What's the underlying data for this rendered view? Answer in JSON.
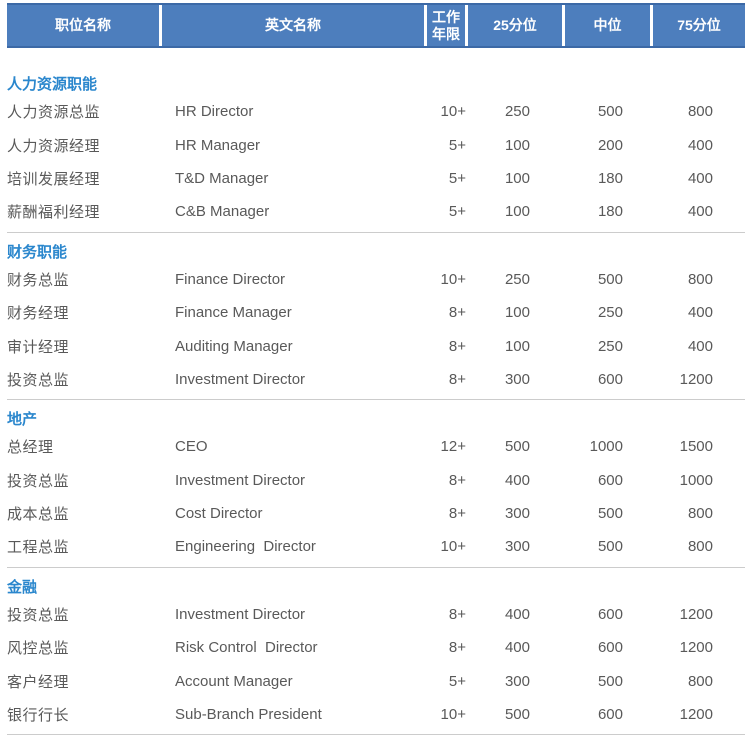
{
  "colors": {
    "header_bg": "#4d7ebd",
    "header_border": "#3c69a6",
    "header_text": "#ffffff",
    "section_title": "#2b87cd",
    "row_text": "#595959",
    "divider": "#cccccc",
    "page_bg": "#ffffff"
  },
  "table": {
    "headers": [
      "职位名称",
      "英文名称",
      "工作年限",
      "25分位",
      "中位",
      "75分位"
    ],
    "sections": [
      {
        "title": "人力资源职能",
        "rows": [
          {
            "cn": "人力资源总监",
            "en": "HR Director",
            "years": "10+",
            "p25": "250",
            "median": "500",
            "p75": "800"
          },
          {
            "cn": "人力资源经理",
            "en": "HR Manager",
            "years": "5+",
            "p25": "100",
            "median": "200",
            "p75": "400"
          },
          {
            "cn": "培训发展经理",
            "en": "T&D Manager",
            "years": "5+",
            "p25": "100",
            "median": "180",
            "p75": "400"
          },
          {
            "cn": "薪酬福利经理",
            "en": "C&B Manager",
            "years": "5+",
            "p25": "100",
            "median": "180",
            "p75": "400"
          }
        ]
      },
      {
        "title": "财务职能",
        "rows": [
          {
            "cn": "财务总监",
            "en": "Finance Director",
            "years": "10+",
            "p25": "250",
            "median": "500",
            "p75": "800"
          },
          {
            "cn": "财务经理",
            "en": "Finance Manager",
            "years": "8+",
            "p25": "100",
            "median": "250",
            "p75": "400"
          },
          {
            "cn": "审计经理",
            "en": "Auditing Manager",
            "years": "8+",
            "p25": "100",
            "median": "250",
            "p75": "400"
          },
          {
            "cn": "投资总监",
            "en": "Investment Director",
            "years": "8+",
            "p25": "300",
            "median": "600",
            "p75": "1200"
          }
        ]
      },
      {
        "title": "地产",
        "rows": [
          {
            "cn": "总经理",
            "en": "CEO",
            "years": "12+",
            "p25": "500",
            "median": "1000",
            "p75": "1500"
          },
          {
            "cn": "投资总监",
            "en": "Investment Director",
            "years": "8+",
            "p25": "400",
            "median": "600",
            "p75": "1000"
          },
          {
            "cn": "成本总监",
            "en": "Cost Director",
            "years": "8+",
            "p25": "300",
            "median": "500",
            "p75": "800"
          },
          {
            "cn": "工程总监",
            "en": "Engineering  Director",
            "years": "10+",
            "p25": "300",
            "median": "500",
            "p75": "800"
          }
        ]
      },
      {
        "title": "金融",
        "rows": [
          {
            "cn": "投资总监",
            "en": "Investment Director",
            "years": "8+",
            "p25": "400",
            "median": "600",
            "p75": "1200"
          },
          {
            "cn": "风控总监",
            "en": "Risk Control  Director",
            "years": "8+",
            "p25": "400",
            "median": "600",
            "p75": "1200"
          },
          {
            "cn": "客户经理",
            "en": "Account Manager",
            "years": "5+",
            "p25": "300",
            "median": "500",
            "p75": "800"
          },
          {
            "cn": "银行行长",
            "en": "Sub-Branch President",
            "years": "10+",
            "p25": "500",
            "median": "600",
            "p75": "1200"
          }
        ]
      }
    ]
  }
}
